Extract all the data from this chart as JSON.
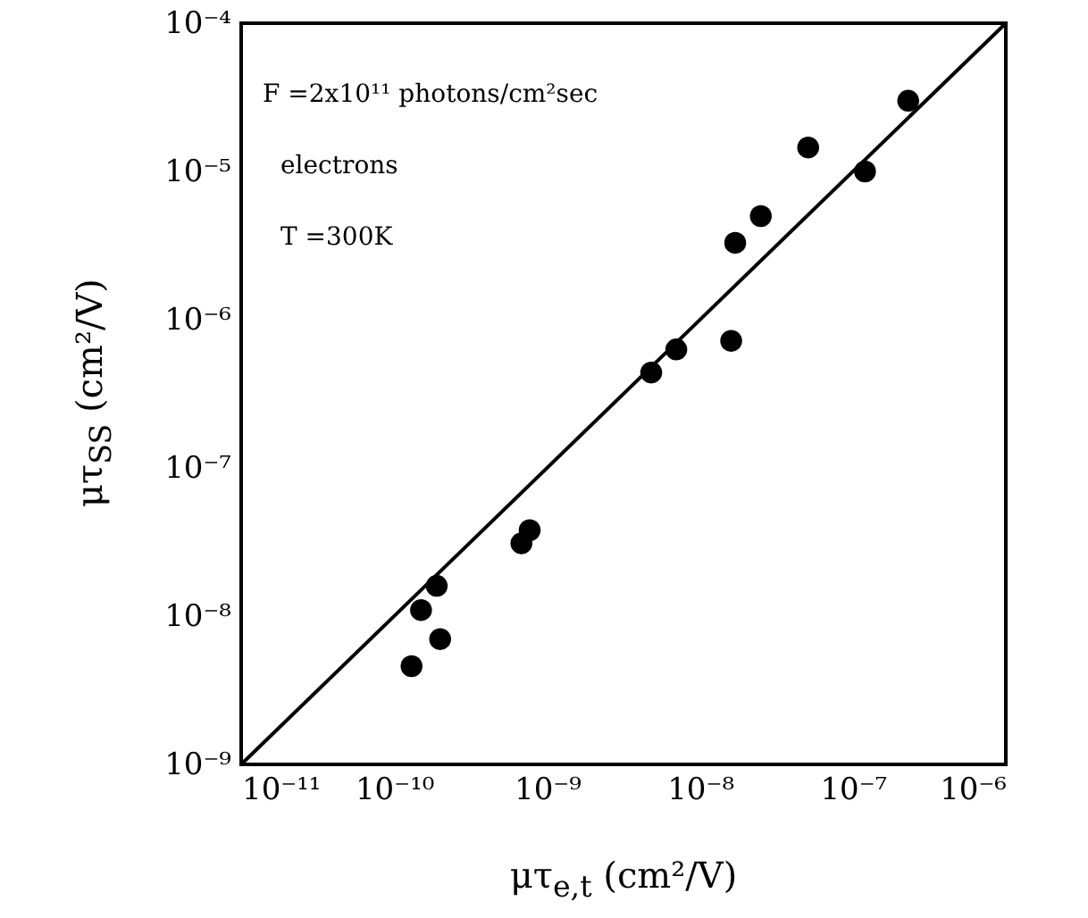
{
  "chart_data": {
    "type": "scatter",
    "xlabel": "μτ$_{e,t}$  (cm²/V)",
    "ylabel": "μτ$_{SS}$  (cm²/V)",
    "log": "xy",
    "grid": false,
    "xlim": [
      1e-11,
      1e-06
    ],
    "ylim": [
      1e-09,
      0.0001
    ],
    "xticks": [
      {
        "value": 1e-11,
        "label": "10⁻¹¹"
      },
      {
        "value": 1e-10,
        "label": "10⁻¹⁰"
      },
      {
        "value": 1e-09,
        "label": "10⁻⁹"
      },
      {
        "value": 1e-08,
        "label": "10⁻⁸"
      },
      {
        "value": 1e-07,
        "label": "10⁻⁷"
      },
      {
        "value": 1e-06,
        "label": "10⁻⁶"
      }
    ],
    "yticks": [
      {
        "value": 1e-09,
        "label": "10⁻⁹"
      },
      {
        "value": 1e-08,
        "label": "10⁻⁸"
      },
      {
        "value": 1e-07,
        "label": "10⁻⁷"
      },
      {
        "value": 1e-06,
        "label": "10⁻⁶"
      },
      {
        "value": 1e-05,
        "label": "10⁻⁵"
      },
      {
        "value": 0.0001,
        "label": "10⁻⁴"
      }
    ],
    "annotations": [
      "F =2x10¹¹ photons/cm²sec",
      "electrons",
      "T =300K"
    ],
    "series": [
      {
        "type": "scatter",
        "color": "#000000",
        "marker": "circle",
        "x": [
          2.3e-07,
          5.1e-08,
          1.2e-07,
          2.5e-08,
          1.7e-08,
          1.6e-08,
          7e-09,
          4.8e-09,
          7.7e-10,
          6.8e-10,
          1.9e-10,
          1.5e-10,
          2e-10,
          1.3e-10
        ],
        "values": [
          3e-05,
          1.45e-05,
          1e-05,
          5e-06,
          3.3e-06,
          7.2e-07,
          6.3e-07,
          4.4e-07,
          3.8e-08,
          3.1e-08,
          1.6e-08,
          1.1e-08,
          7e-09,
          4.6e-09
        ]
      },
      {
        "type": "line",
        "color": "#000000",
        "x": [
          1e-11,
          1e-06
        ],
        "values": [
          1e-09,
          0.0001
        ],
        "line_style": "solid",
        "marker": "none"
      }
    ]
  }
}
